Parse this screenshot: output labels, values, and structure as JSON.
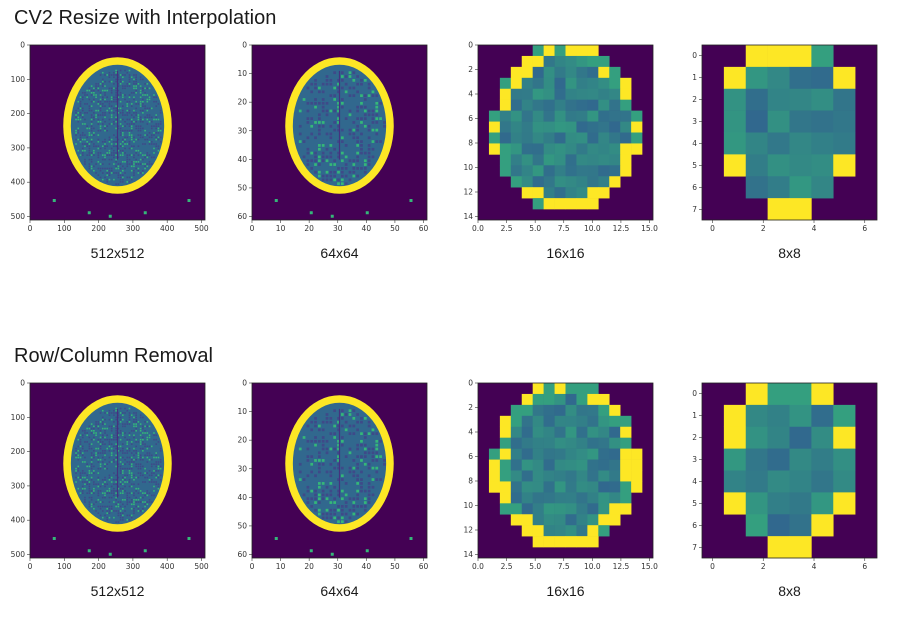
{
  "sections": [
    {
      "title": "CV2 Resize with Interpolation",
      "panels": [
        {
          "label": "512x512",
          "size": 512,
          "xticks": [
            "0",
            "100",
            "200",
            "300",
            "400",
            "500"
          ],
          "yticks": [
            "0",
            "100",
            "200",
            "300",
            "400",
            "500"
          ]
        },
        {
          "label": "64x64",
          "size": 64,
          "xticks": [
            "0",
            "10",
            "20",
            "30",
            "40",
            "50",
            "60"
          ],
          "yticks": [
            "0",
            "10",
            "20",
            "30",
            "40",
            "50",
            "60"
          ]
        },
        {
          "label": "16x16",
          "size": 16,
          "xticks": [
            "0.0",
            "2.5",
            "5.0",
            "7.5",
            "10.0",
            "12.5",
            "15.0"
          ],
          "yticks": [
            "0",
            "2",
            "4",
            "6",
            "8",
            "10",
            "12",
            "14"
          ]
        },
        {
          "label": "8x8",
          "size": 8,
          "xticks": [
            "0",
            "2",
            "4",
            "6"
          ],
          "yticks": [
            "0",
            "1",
            "2",
            "3",
            "4",
            "5",
            "6",
            "7"
          ]
        }
      ]
    },
    {
      "title": "Row/Column Removal",
      "panels": [
        {
          "label": "512x512",
          "size": 512,
          "xticks": [
            "0",
            "100",
            "200",
            "300",
            "400",
            "500"
          ],
          "yticks": [
            "0",
            "100",
            "200",
            "300",
            "400",
            "500"
          ]
        },
        {
          "label": "64x64",
          "size": 64,
          "xticks": [
            "0",
            "10",
            "20",
            "30",
            "40",
            "50",
            "60"
          ],
          "yticks": [
            "0",
            "10",
            "20",
            "30",
            "40",
            "50",
            "60"
          ]
        },
        {
          "label": "16x16",
          "size": 16,
          "xticks": [
            "0.0",
            "2.5",
            "5.0",
            "7.5",
            "10.0",
            "12.5",
            "15.0"
          ],
          "yticks": [
            "0",
            "2",
            "4",
            "6",
            "8",
            "10",
            "12",
            "14"
          ]
        },
        {
          "label": "8x8",
          "size": 8,
          "xticks": [
            "0",
            "2",
            "4",
            "6"
          ],
          "yticks": [
            "0",
            "1",
            "2",
            "3",
            "4",
            "5",
            "6",
            "7"
          ]
        }
      ]
    }
  ],
  "colors": {
    "background": "#440154",
    "skull": "#fde725",
    "tissue": "#31688e",
    "tissue_light": "#35b779"
  }
}
